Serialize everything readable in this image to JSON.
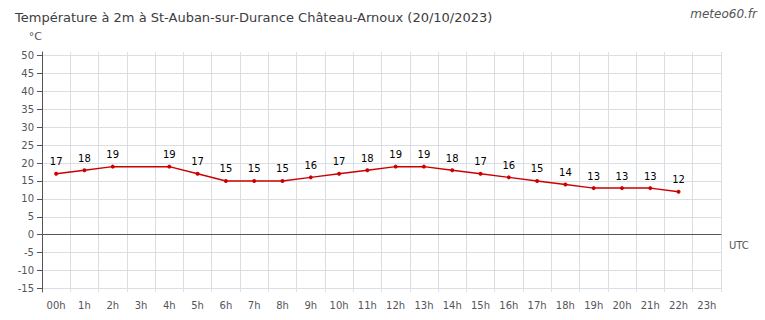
{
  "chart_data": {
    "type": "line",
    "title": "Température à 2m à St-Auban-sur-Durance Château-Arnoux (20/10/2023)",
    "ylabel": "°C",
    "xlabel": "UTC",
    "annotations": [
      "meteo60.fr"
    ],
    "categories": [
      "00h",
      "1h",
      "2h",
      "3h",
      "4h",
      "5h",
      "6h",
      "7h",
      "8h",
      "9h",
      "10h",
      "11h",
      "12h",
      "13h",
      "14h",
      "15h",
      "16h",
      "17h",
      "18h",
      "19h",
      "20h",
      "21h",
      "22h",
      "23h"
    ],
    "values": [
      17,
      18,
      19,
      null,
      19,
      17,
      15,
      15,
      15,
      16,
      17,
      18,
      19,
      19,
      18,
      17,
      16,
      15,
      14,
      13,
      13,
      13,
      12,
      null
    ],
    "color": "#cc0000",
    "data_labels": true,
    "ylim": [
      -16,
      51
    ],
    "yticks": [
      -15,
      -10,
      -5,
      0,
      5,
      10,
      15,
      20,
      25,
      30,
      35,
      40,
      45,
      50
    ],
    "grid": true
  }
}
